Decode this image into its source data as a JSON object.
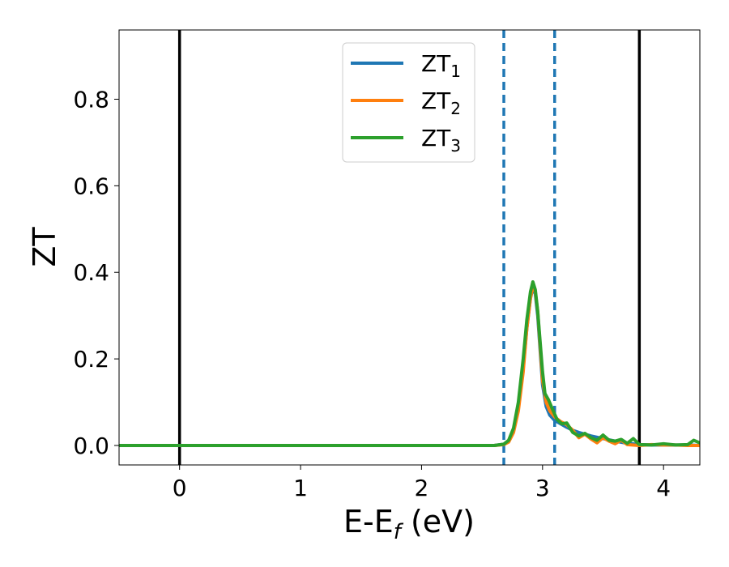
{
  "chart_data": {
    "type": "line",
    "xlabel": "E-E",
    "xlabel_sub": "f",
    "xlabel_unit": " (eV)",
    "ylabel": "ZT",
    "xlim": [
      -0.5,
      4.3
    ],
    "ylim": [
      -0.045,
      0.96
    ],
    "xticks": [
      0,
      1,
      2,
      3,
      4
    ],
    "xtick_labels": [
      "0",
      "1",
      "2",
      "3",
      "4"
    ],
    "yticks": [
      0.0,
      0.2,
      0.4,
      0.6,
      0.8
    ],
    "ytick_labels": [
      "0.0",
      "0.2",
      "0.4",
      "0.6",
      "0.8"
    ],
    "grid": false,
    "legend_position": "top-center",
    "vlines_solid": [
      0.0,
      3.8
    ],
    "vlines_dashed": [
      2.68,
      3.1
    ],
    "series": [
      {
        "name": "ZT",
        "name_sub": "1",
        "color": "#1f77b4",
        "x": [
          -0.5,
          2.6,
          2.68,
          2.72,
          2.76,
          2.8,
          2.84,
          2.87,
          2.9,
          2.92,
          2.94,
          2.96,
          2.98,
          3.0,
          3.03,
          3.06,
          3.1,
          3.15,
          3.2,
          3.25,
          3.3,
          3.4,
          3.5,
          3.6,
          3.7,
          3.8,
          3.9,
          4.0,
          4.1,
          4.2,
          4.3
        ],
        "y": [
          0.0,
          0.0,
          0.003,
          0.01,
          0.035,
          0.09,
          0.18,
          0.27,
          0.34,
          0.365,
          0.35,
          0.3,
          0.22,
          0.14,
          0.09,
          0.07,
          0.058,
          0.05,
          0.042,
          0.035,
          0.03,
          0.022,
          0.016,
          0.01,
          0.005,
          0.002,
          0.001,
          0.001,
          0.001,
          0.001,
          0.0
        ]
      },
      {
        "name": "ZT",
        "name_sub": "2",
        "color": "#ff7f0e",
        "x": [
          -0.5,
          2.6,
          2.68,
          2.72,
          2.76,
          2.8,
          2.84,
          2.87,
          2.9,
          2.92,
          2.94,
          2.96,
          2.98,
          3.0,
          3.03,
          3.06,
          3.1,
          3.15,
          3.2,
          3.25,
          3.3,
          3.35,
          3.4,
          3.45,
          3.5,
          3.55,
          3.6,
          3.65,
          3.7,
          3.8,
          3.9,
          4.0,
          4.1,
          4.2,
          4.3
        ],
        "y": [
          0.0,
          0.0,
          0.002,
          0.008,
          0.03,
          0.08,
          0.17,
          0.27,
          0.34,
          0.37,
          0.355,
          0.31,
          0.23,
          0.15,
          0.1,
          0.08,
          0.066,
          0.055,
          0.048,
          0.035,
          0.018,
          0.026,
          0.015,
          0.006,
          0.018,
          0.01,
          0.004,
          0.012,
          0.002,
          0.0,
          0.002,
          0.001,
          0.001,
          0.0,
          0.0
        ]
      },
      {
        "name": "ZT",
        "name_sub": "3",
        "color": "#2ca02c",
        "x": [
          -0.5,
          2.6,
          2.68,
          2.72,
          2.76,
          2.8,
          2.84,
          2.87,
          2.9,
          2.92,
          2.94,
          2.96,
          2.98,
          3.0,
          3.02,
          3.05,
          3.08,
          3.12,
          3.16,
          3.2,
          3.25,
          3.3,
          3.35,
          3.4,
          3.45,
          3.5,
          3.55,
          3.6,
          3.65,
          3.7,
          3.75,
          3.8,
          3.9,
          4.0,
          4.1,
          4.2,
          4.25,
          4.3
        ],
        "y": [
          0.0,
          0.0,
          0.003,
          0.012,
          0.04,
          0.1,
          0.2,
          0.29,
          0.355,
          0.378,
          0.36,
          0.31,
          0.24,
          0.17,
          0.12,
          0.105,
          0.085,
          0.06,
          0.05,
          0.052,
          0.03,
          0.022,
          0.028,
          0.018,
          0.012,
          0.024,
          0.012,
          0.01,
          0.014,
          0.005,
          0.016,
          0.002,
          0.001,
          0.004,
          0.001,
          0.002,
          0.012,
          0.006
        ]
      }
    ]
  }
}
